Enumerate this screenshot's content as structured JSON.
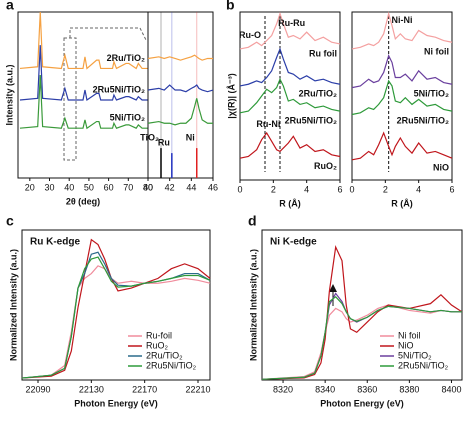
{
  "chart_data": [
    {
      "type": "line",
      "panel": "a",
      "xlabel": "2θ (deg)",
      "ylabel": "Intensity (a.u.)",
      "xlim": [
        14,
        80
      ],
      "ylim": [
        0,
        10
      ],
      "xticks": [
        20,
        30,
        40,
        50,
        60,
        70,
        80
      ],
      "x": [
        15,
        24,
        25.3,
        26.5,
        36,
        37.8,
        39.5,
        47,
        48,
        49,
        53.9,
        55.1,
        56,
        62,
        62.7,
        64,
        68.8,
        70.3,
        74,
        75.1,
        77,
        80
      ],
      "series": [
        {
          "name": "2Ru/TiO₂",
          "color": "#f5a142",
          "values": [
            6.6,
            6.7,
            10,
            6.7,
            6.6,
            7.4,
            6.6,
            6.6,
            7.3,
            6.6,
            7.1,
            7.1,
            6.6,
            6.6,
            7.0,
            6.6,
            6.9,
            6.9,
            6.6,
            6.9,
            6.6,
            6.6
          ]
        },
        {
          "name": "2Ru5Ni/TiO₂",
          "color": "#2c3ea8",
          "values": [
            4.7,
            4.8,
            8.0,
            4.8,
            4.7,
            5.4,
            4.7,
            4.7,
            5.3,
            4.7,
            5.1,
            5.1,
            4.7,
            4.7,
            5.0,
            4.7,
            4.9,
            4.9,
            4.7,
            4.9,
            4.7,
            4.7
          ]
        },
        {
          "name": "5Ni/TiO₂",
          "color": "#3a9a3a",
          "values": [
            3.0,
            3.1,
            6.2,
            3.1,
            3.0,
            3.6,
            3.0,
            3.0,
            3.5,
            3.0,
            3.4,
            3.4,
            3.0,
            3.0,
            3.3,
            3.0,
            3.2,
            3.2,
            3.0,
            3.2,
            3.0,
            3.0
          ]
        }
      ]
    },
    {
      "type": "line",
      "xlim": [
        40,
        46
      ],
      "ylim": [
        0,
        10
      ],
      "xticks": [
        40,
        42,
        44,
        46
      ],
      "x": [
        40,
        41,
        41.5,
        42,
        42.5,
        43,
        43.5,
        44,
        44.3,
        44.5,
        44.7,
        45,
        45.5,
        46
      ],
      "series": [
        {
          "color": "#f5a142",
          "values": [
            7.2,
            7.3,
            7.2,
            7.3,
            7.2,
            7.1,
            7.2,
            7.3,
            7.4,
            7.3,
            7.2,
            7.1,
            7.2,
            7.2
          ]
        },
        {
          "color": "#2c3ea8",
          "values": [
            5.3,
            5.4,
            5.3,
            5.6,
            5.3,
            5.3,
            5.2,
            5.4,
            5.5,
            5.6,
            5.4,
            5.3,
            5.2,
            5.3
          ]
        },
        {
          "color": "#3a9a3a",
          "values": [
            3.3,
            3.4,
            3.3,
            3.3,
            3.2,
            3.3,
            3.3,
            3.6,
            4.3,
            4.8,
            4.2,
            3.5,
            3.3,
            3.3
          ]
        }
      ],
      "references": [
        {
          "name": "TiO₂",
          "color": "#000000",
          "x": 41.2,
          "height": 1.8
        },
        {
          "name": "Ru",
          "color": "#2030c0",
          "x": 42.2,
          "height": 1.5
        },
        {
          "name": "Ni",
          "color": "#e02020",
          "x": 44.5,
          "height": 1.8
        }
      ]
    },
    {
      "type": "line",
      "panel": "b",
      "xlabel": "R (Å)",
      "ylabel": "|χ(R)| (Å⁻³)",
      "xlim": [
        0,
        6
      ],
      "ylim": [
        0,
        10
      ],
      "xticks": [
        0,
        2,
        4,
        6
      ],
      "vlines": [
        1.5,
        2.4
      ],
      "x": [
        0,
        0.5,
        1,
        1.3,
        1.6,
        1.9,
        2.2,
        2.4,
        2.6,
        2.9,
        3.2,
        3.6,
        4,
        4.5,
        5,
        5.5,
        6
      ],
      "series": [
        {
          "name": "Ru foil",
          "color": "#f4a0a0",
          "values": [
            7.8,
            7.9,
            8.2,
            8.0,
            8.3,
            8.6,
            9.3,
            9.9,
            9.3,
            8.5,
            8.6,
            8.4,
            8.8,
            8.3,
            8.5,
            8.2,
            8.1
          ]
        },
        {
          "name": "2Ru/TiO₂",
          "color": "#2b3ea8",
          "values": [
            5.6,
            5.7,
            5.9,
            5.8,
            6.1,
            6.5,
            7.3,
            7.8,
            7.2,
            6.4,
            6.3,
            6.0,
            6.2,
            5.9,
            6.0,
            5.8,
            5.7
          ]
        },
        {
          "name": "2Ru5Ni/TiO₂",
          "color": "#2e9a3a",
          "values": [
            4.0,
            4.1,
            4.6,
            5.0,
            5.4,
            5.2,
            5.5,
            6.0,
            5.6,
            4.7,
            4.8,
            4.5,
            4.6,
            4.3,
            4.4,
            4.2,
            4.1
          ]
        },
        {
          "name": "RuO₂",
          "color": "#c0161c",
          "values": [
            1.3,
            1.4,
            1.8,
            2.4,
            2.8,
            2.3,
            1.8,
            1.7,
            1.9,
            2.2,
            2.6,
            1.9,
            2.1,
            1.7,
            1.8,
            1.5,
            1.4
          ]
        }
      ],
      "annotations": [
        {
          "text": "Ru-O",
          "x": 0.6,
          "y": 8.6
        },
        {
          "text": "Ru-Ru",
          "x": 3.1,
          "y": 9.3
        },
        {
          "text": "Ru-Ni",
          "x": 1.7,
          "y": 3.3
        }
      ]
    },
    {
      "type": "line",
      "xlabel": "R (Å)",
      "xlim": [
        0,
        6
      ],
      "ylim": [
        0,
        10
      ],
      "xticks": [
        0,
        2,
        4,
        6
      ],
      "vlines": [
        2.2
      ],
      "x": [
        0,
        0.5,
        1,
        1.3,
        1.6,
        1.9,
        2.2,
        2.4,
        2.6,
        2.9,
        3.2,
        3.6,
        4,
        4.5,
        5,
        5.5,
        6
      ],
      "series": [
        {
          "name": "Ni foil",
          "color": "#f4a0a0",
          "values": [
            7.8,
            7.9,
            8.1,
            8.0,
            8.2,
            8.7,
            9.9,
            9.2,
            8.4,
            8.7,
            8.4,
            8.3,
            8.9,
            8.6,
            8.5,
            8.3,
            8.2
          ]
        },
        {
          "name": "5Ni/TiO₂",
          "color": "#6a3f9e",
          "values": [
            5.5,
            5.6,
            6.0,
            5.8,
            5.9,
            6.4,
            7.4,
            7.0,
            6.1,
            6.1,
            6.3,
            5.9,
            6.5,
            6.0,
            6.1,
            5.8,
            5.7
          ]
        },
        {
          "name": "2Ru5Ni/TiO₂",
          "color": "#2e9a3a",
          "values": [
            3.9,
            4.0,
            4.3,
            4.2,
            4.5,
            4.9,
            5.9,
            5.6,
            4.7,
            4.6,
            4.9,
            4.5,
            4.8,
            4.4,
            4.5,
            4.2,
            4.1
          ]
        },
        {
          "name": "NiO",
          "color": "#c0161c",
          "values": [
            1.2,
            1.3,
            1.7,
            1.5,
            2.1,
            2.8,
            2.0,
            1.5,
            2.0,
            2.5,
            2.0,
            1.6,
            2.2,
            1.6,
            1.7,
            1.5,
            1.3
          ]
        }
      ],
      "annotations": [
        {
          "text": "Ni-Ni",
          "x": 3.0,
          "y": 9.5
        }
      ]
    },
    {
      "type": "line",
      "panel": "c",
      "title": "Ru K-edge",
      "xlabel": "Photon Energy (eV)",
      "ylabel": "Normalized Intensity (a.u.)",
      "xlim": [
        22078,
        22219
      ],
      "ylim": [
        0,
        1.55
      ],
      "xticks": [
        22090,
        22130,
        22170,
        22210
      ],
      "legend": "lower right",
      "x": [
        22078,
        22100,
        22110,
        22115,
        22120,
        22125,
        22130,
        22135,
        22140,
        22145,
        22150,
        22160,
        22170,
        22180,
        22190,
        22200,
        22210,
        22219
      ],
      "series": [
        {
          "name": "Ru-foil",
          "color": "#f08c9c",
          "values": [
            0.02,
            0.05,
            0.15,
            0.5,
            0.95,
            1.05,
            1.1,
            1.18,
            1.15,
            1.05,
            1.0,
            1.02,
            1.0,
            1.0,
            1.02,
            1.05,
            1.03,
            1.0
          ]
        },
        {
          "name": "RuO₂",
          "color": "#c0161c",
          "values": [
            0.02,
            0.04,
            0.1,
            0.3,
            0.75,
            1.1,
            1.45,
            1.4,
            1.25,
            1.05,
            0.92,
            0.95,
            1.0,
            1.05,
            1.15,
            1.2,
            1.15,
            1.05
          ]
        },
        {
          "name": "2Ru/TiO₂",
          "color": "#2a6a8a",
          "values": [
            0.02,
            0.05,
            0.12,
            0.45,
            0.95,
            1.1,
            1.3,
            1.32,
            1.2,
            1.05,
            0.98,
            0.97,
            1.0,
            1.02,
            1.05,
            1.1,
            1.1,
            1.03
          ]
        },
        {
          "name": "2Ru5Ni/TiO₂",
          "color": "#2e9a3a",
          "values": [
            0.02,
            0.05,
            0.12,
            0.45,
            0.95,
            1.15,
            1.25,
            1.27,
            1.15,
            1.02,
            0.96,
            0.97,
            1.0,
            1.02,
            1.05,
            1.08,
            1.08,
            1.03
          ]
        }
      ]
    },
    {
      "type": "line",
      "panel": "d",
      "title": "Ni K-edge",
      "xlabel": "Photon Energy (eV)",
      "ylabel": "Normalized Intensity (a.u.)",
      "xlim": [
        8310,
        8405
      ],
      "ylim": [
        0,
        2.2
      ],
      "xticks": [
        8320,
        8340,
        8360,
        8380,
        8400
      ],
      "legend": "lower right",
      "x": [
        8310,
        8330,
        8335,
        8338,
        8340,
        8342,
        8345,
        8348,
        8350,
        8352,
        8355,
        8360,
        8365,
        8370,
        8380,
        8390,
        8395,
        8400,
        8405
      ],
      "series": [
        {
          "name": "Ni foil",
          "color": "#f08c9c",
          "values": [
            0.01,
            0.05,
            0.12,
            0.4,
            0.7,
            0.95,
            1.05,
            1.0,
            0.9,
            0.85,
            0.88,
            0.95,
            1.05,
            1.1,
            1.02,
            0.98,
            1.02,
            1.0,
            1.0
          ]
        },
        {
          "name": "NiO",
          "color": "#c0161c",
          "values": [
            0.01,
            0.03,
            0.08,
            0.25,
            0.6,
            1.3,
            1.95,
            1.75,
            1.1,
            0.75,
            0.7,
            0.85,
            1.0,
            1.1,
            1.05,
            1.12,
            1.25,
            1.1,
            1.0
          ]
        },
        {
          "name": "5Ni/TiO₂",
          "color": "#6a3f9e",
          "values": [
            0.01,
            0.04,
            0.1,
            0.35,
            0.7,
            1.1,
            1.27,
            1.15,
            1.0,
            0.9,
            0.85,
            0.92,
            1.02,
            1.08,
            1.05,
            1.0,
            1.02,
            1.0,
            1.0
          ]
        },
        {
          "name": "2Ru5Ni/TiO₂",
          "color": "#2e9a3a",
          "values": [
            0.01,
            0.04,
            0.1,
            0.35,
            0.7,
            1.15,
            1.22,
            1.12,
            1.0,
            0.9,
            0.86,
            0.92,
            1.02,
            1.08,
            1.05,
            1.0,
            1.02,
            1.0,
            1.0
          ]
        }
      ]
    }
  ]
}
